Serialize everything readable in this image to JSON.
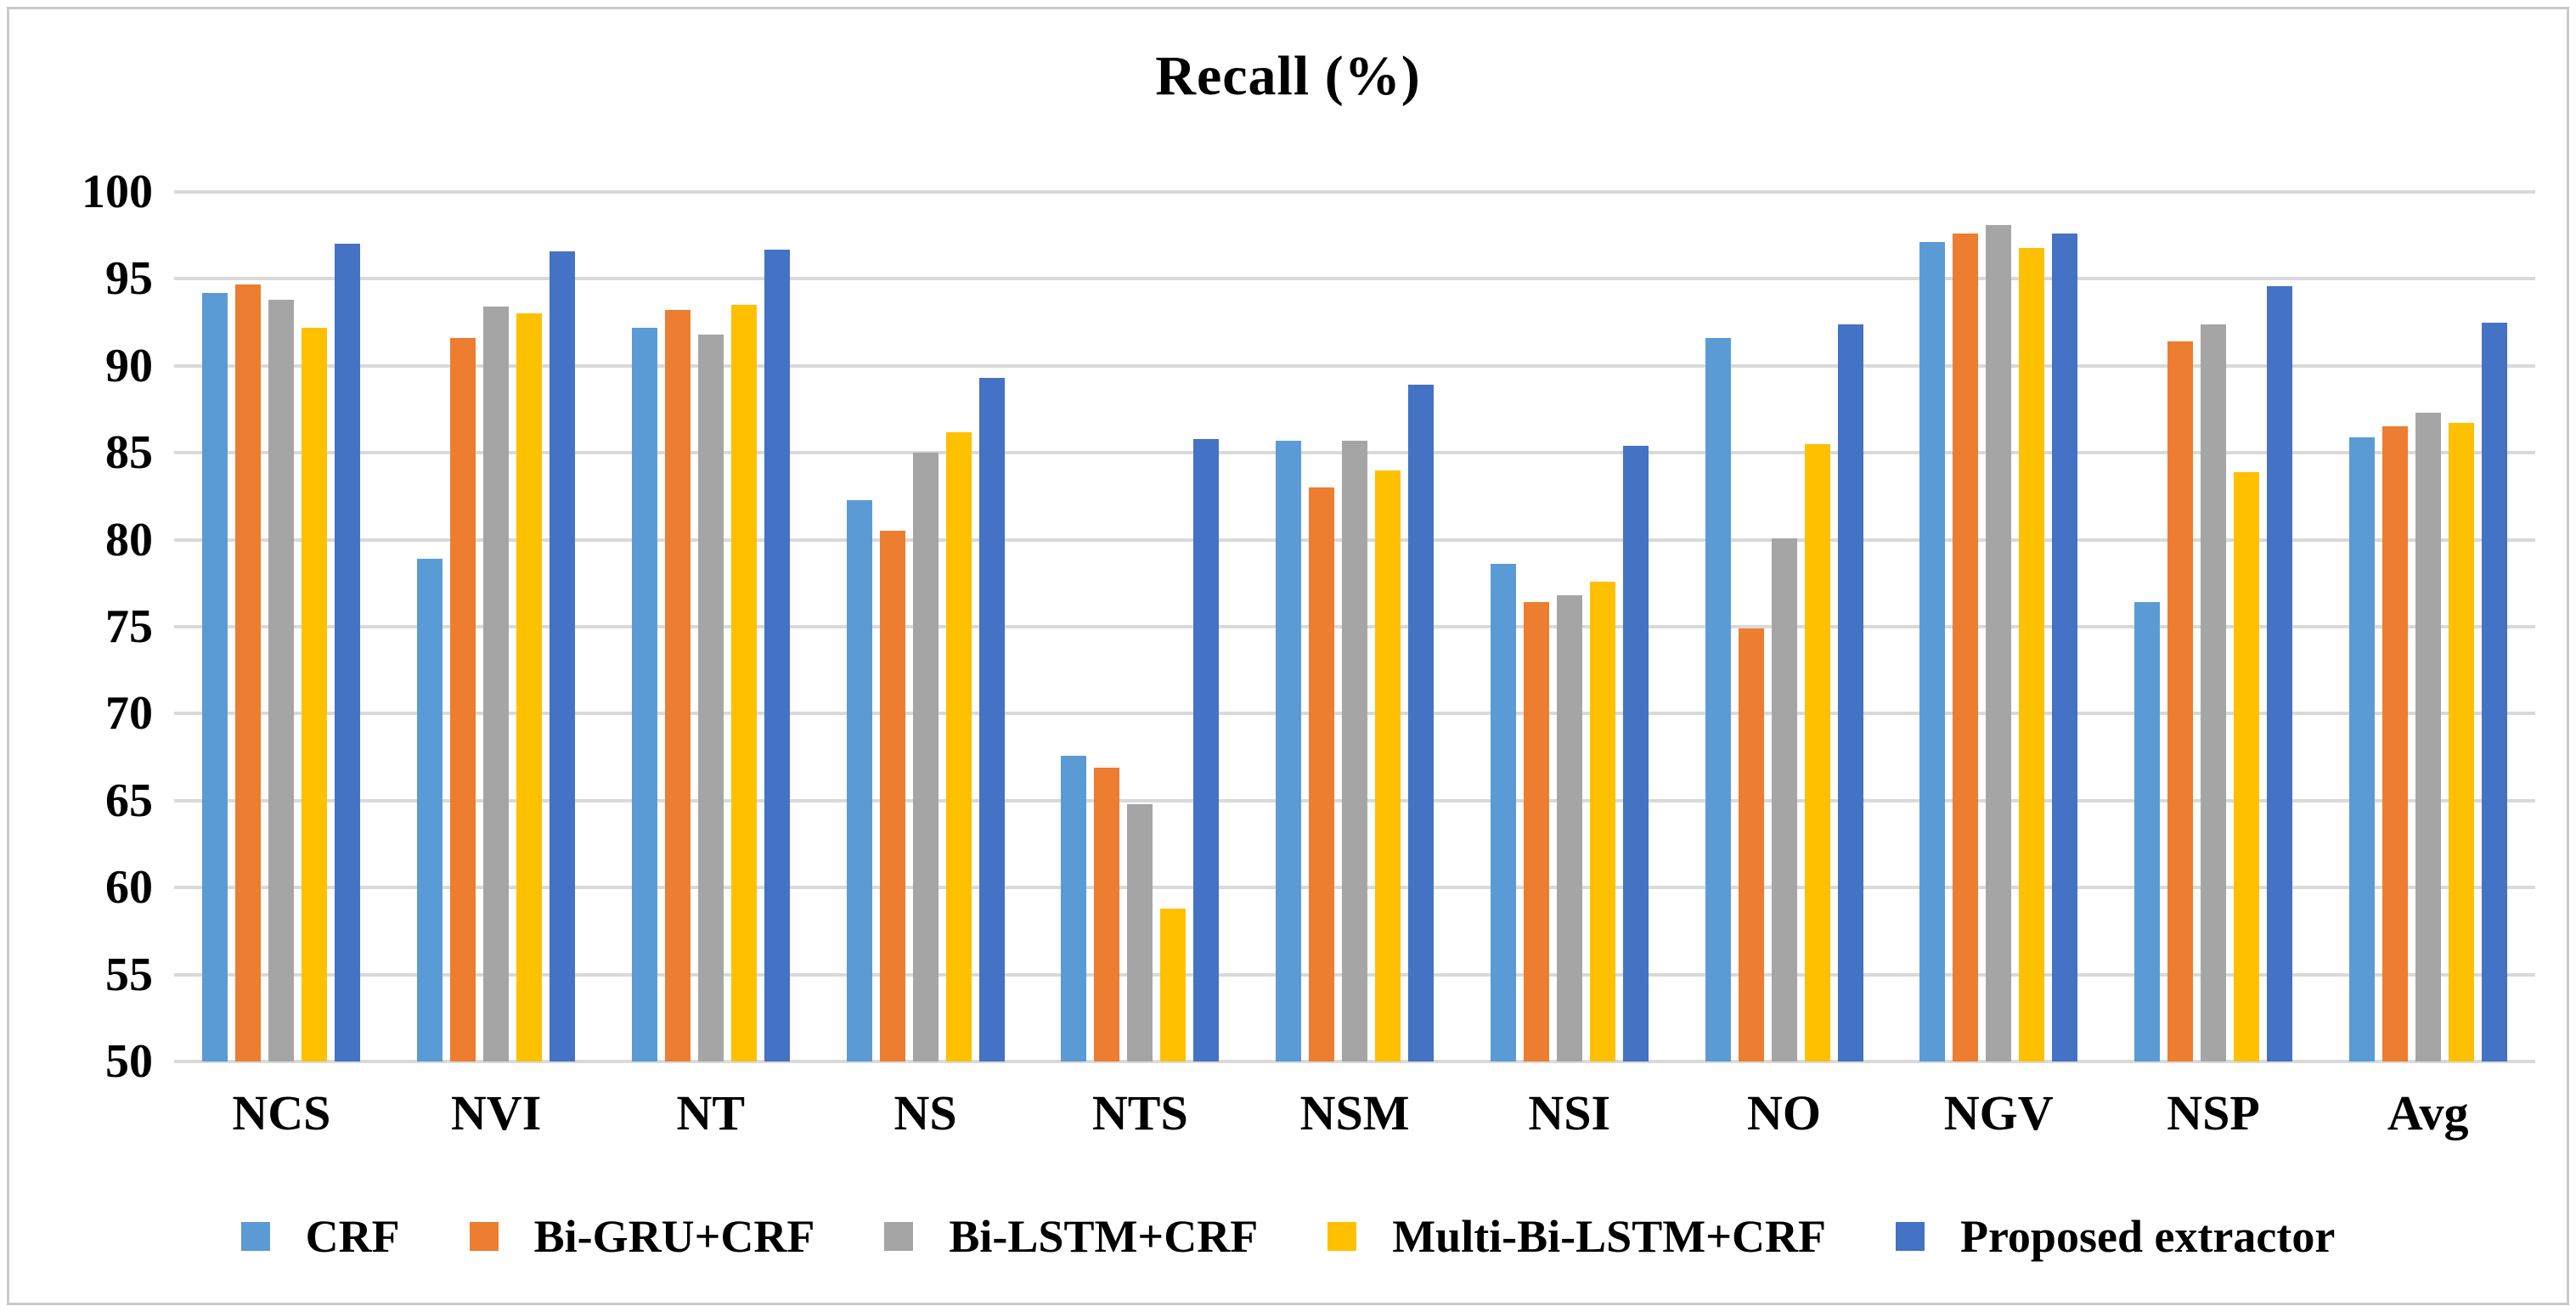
{
  "figure": {
    "border_color": "#c9c9c9",
    "background_color": "#ffffff",
    "gridline_color": "#d9d9d9"
  },
  "chart_data": {
    "type": "bar",
    "title": "Recall (%)",
    "xlabel": "",
    "ylabel": "",
    "ylim": [
      50,
      100
    ],
    "ytick_step": 5,
    "yticks": [
      100,
      95,
      90,
      85,
      80,
      75,
      70,
      65,
      60,
      55,
      50
    ],
    "grid": "horizontal",
    "legend_position": "bottom",
    "categories": [
      "NCS",
      "NVI",
      "NT",
      "NS",
      "NTS",
      "NSM",
      "NSI",
      "NO",
      "NGV",
      "NSP",
      "Avg"
    ],
    "series": [
      {
        "name": "CRF",
        "color": "#5B9BD5",
        "values": [
          94.2,
          78.9,
          92.2,
          82.3,
          67.6,
          85.7,
          78.6,
          91.6,
          97.1,
          76.4,
          85.9
        ]
      },
      {
        "name": "Bi-GRU+CRF",
        "color": "#ED7D31",
        "values": [
          94.7,
          91.6,
          93.2,
          80.5,
          66.9,
          83.0,
          76.4,
          74.9,
          97.6,
          91.4,
          86.5
        ]
      },
      {
        "name": "Bi-LSTM+CRF",
        "color": "#A5A5A5",
        "values": [
          93.8,
          93.4,
          91.8,
          85.0,
          64.8,
          85.7,
          76.8,
          80.1,
          98.1,
          92.4,
          87.3
        ]
      },
      {
        "name": "Multi-Bi-LSTM+CRF",
        "color": "#FFC000",
        "values": [
          92.2,
          93.0,
          93.5,
          86.2,
          58.8,
          84.0,
          77.6,
          85.5,
          96.8,
          83.9,
          86.7
        ]
      },
      {
        "name": "Proposed extractor",
        "color": "#4472C4",
        "values": [
          97.0,
          96.6,
          96.7,
          89.3,
          85.8,
          88.9,
          85.4,
          92.4,
          97.6,
          94.6,
          92.5
        ]
      }
    ]
  }
}
